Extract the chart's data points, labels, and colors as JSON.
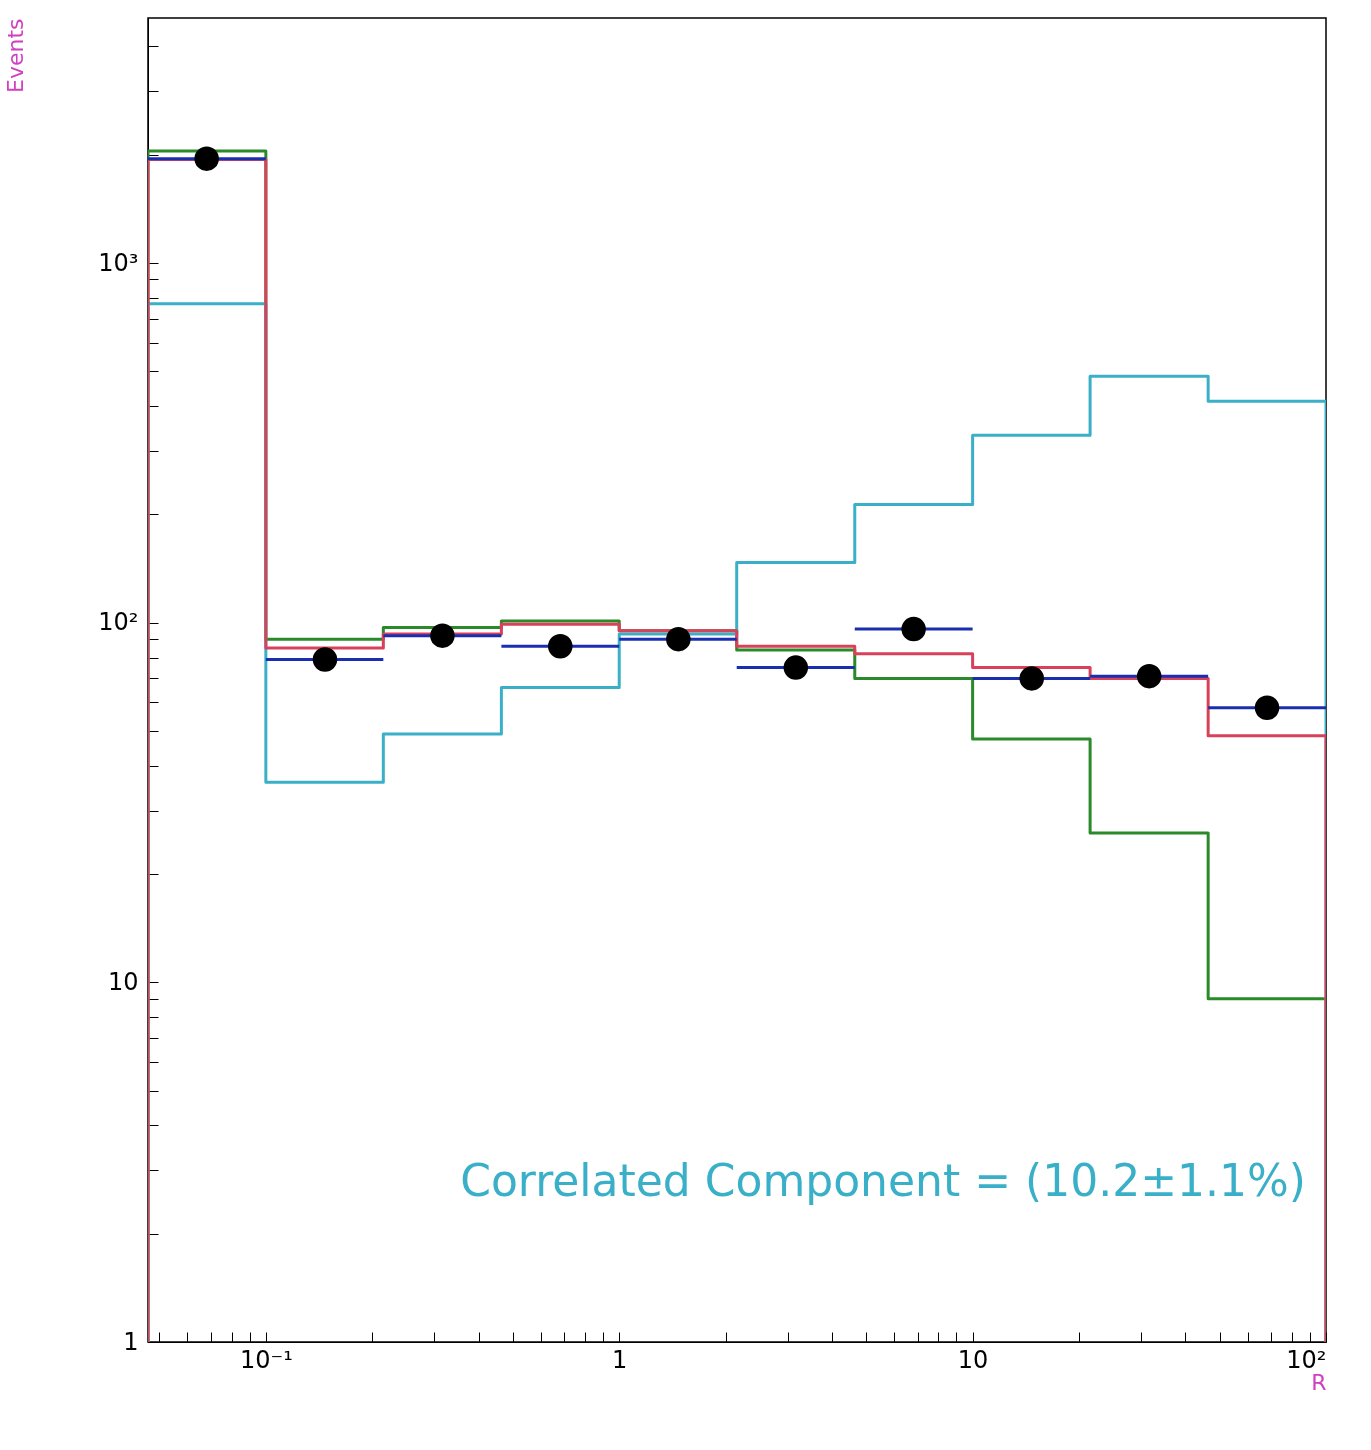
{
  "chart_data": {
    "type": "histogram",
    "xlabel": "R",
    "ylabel": "Events",
    "log": "xy",
    "grid": false,
    "bins": [
      0.0464,
      0.1,
      0.215,
      0.464,
      1,
      2.15,
      4.64,
      10,
      21.5,
      46.4,
      100
    ],
    "xlim": [
      0.0464,
      100
    ],
    "ylim": [
      1,
      4800
    ],
    "xticks": [
      {
        "value": 0.05,
        "label": null
      },
      {
        "value": 0.06,
        "label": null
      },
      {
        "value": 0.07,
        "label": null
      },
      {
        "value": 0.08,
        "label": null
      },
      {
        "value": 0.09,
        "label": null
      },
      {
        "value": 0.1,
        "label": "10⁻¹"
      },
      {
        "value": 0.2,
        "label": null
      },
      {
        "value": 0.3,
        "label": null
      },
      {
        "value": 0.4,
        "label": null
      },
      {
        "value": 0.5,
        "label": null
      },
      {
        "value": 0.6,
        "label": null
      },
      {
        "value": 0.7,
        "label": null
      },
      {
        "value": 0.8,
        "label": null
      },
      {
        "value": 0.9,
        "label": null
      },
      1,
      {
        "value": 2,
        "label": null
      },
      {
        "value": 3,
        "label": null
      },
      {
        "value": 4,
        "label": null
      },
      {
        "value": 5,
        "label": null
      },
      {
        "value": 6,
        "label": null
      },
      {
        "value": 7,
        "label": null
      },
      {
        "value": 8,
        "label": null
      },
      {
        "value": 9,
        "label": null
      },
      10,
      {
        "value": 20,
        "label": null
      },
      {
        "value": 30,
        "label": null
      },
      {
        "value": 40,
        "label": null
      },
      {
        "value": 50,
        "label": null
      },
      {
        "value": 60,
        "label": null
      },
      {
        "value": 70,
        "label": null
      },
      {
        "value": 80,
        "label": null
      },
      {
        "value": 90,
        "label": null
      },
      {
        "value": 100,
        "label": "10²"
      }
    ],
    "yticks": [
      1,
      {
        "value": 2,
        "label": null
      },
      {
        "value": 3,
        "label": null
      },
      {
        "value": 4,
        "label": null
      },
      {
        "value": 5,
        "label": null
      },
      {
        "value": 6,
        "label": null
      },
      {
        "value": 7,
        "label": null
      },
      {
        "value": 8,
        "label": null
      },
      {
        "value": 9,
        "label": null
      },
      10,
      {
        "value": 20,
        "label": null
      },
      {
        "value": 30,
        "label": null
      },
      {
        "value": 40,
        "label": null
      },
      {
        "value": 50,
        "label": null
      },
      {
        "value": 60,
        "label": null
      },
      {
        "value": 70,
        "label": null
      },
      {
        "value": 80,
        "label": null
      },
      {
        "value": 90,
        "label": null
      },
      {
        "value": 100,
        "label": "10²"
      },
      {
        "value": 200,
        "label": null
      },
      {
        "value": 300,
        "label": null
      },
      {
        "value": 400,
        "label": null
      },
      {
        "value": 500,
        "label": null
      },
      {
        "value": 600,
        "label": null
      },
      {
        "value": 700,
        "label": null
      },
      {
        "value": 800,
        "label": null
      },
      {
        "value": 900,
        "label": null
      },
      {
        "value": 1000,
        "label": "10³"
      },
      {
        "value": 2000,
        "label": null
      },
      {
        "value": 3000,
        "label": null
      },
      {
        "value": 4000,
        "label": null
      }
    ],
    "series": [
      {
        "color": "#2a8a2a",
        "values": [
          2050,
          90,
          97,
          101,
          95,
          84,
          70,
          47.5,
          26,
          9
        ]
      },
      {
        "color": "#3ab0c8",
        "values": [
          770,
          36,
          49,
          66,
          93,
          147,
          213,
          332,
          484,
          413
        ]
      },
      {
        "color": "#d9405a",
        "values": [
          1940,
          85,
          93,
          99,
          95,
          86,
          82,
          75,
          70,
          48.5
        ]
      },
      {
        "type": "scatter",
        "color": "#000000",
        "marker": "circle",
        "x": [
          0.068,
          0.147,
          0.316,
          0.681,
          1.47,
          3.16,
          6.81,
          14.7,
          31.6,
          68.1
        ],
        "values": [
          1950,
          79,
          92,
          86,
          90,
          75,
          96,
          70,
          71,
          58
        ],
        "xerrors": [
          [
            0.0464,
            0.1
          ],
          [
            0.1,
            0.215
          ],
          [
            0.215,
            0.464
          ],
          [
            0.464,
            1
          ],
          [
            1,
            2.15
          ],
          [
            2.15,
            4.64
          ],
          [
            4.64,
            10
          ],
          [
            10,
            21.5
          ],
          [
            21.5,
            46.4
          ],
          [
            46.4,
            100
          ]
        ]
      }
    ],
    "annotations": [
      "Correlated Component = (10.2±1.1%)"
    ]
  }
}
